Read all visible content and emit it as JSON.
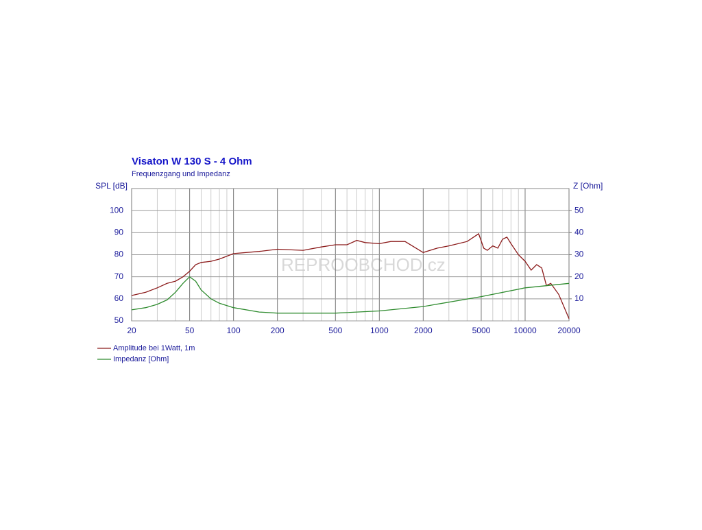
{
  "chart_data": {
    "type": "line",
    "title": "Visaton W 130 S - 4 Ohm",
    "subtitle": "Frequenzgang und Impedanz",
    "y_label": "SPL [dB]",
    "y2_label": "Z [Ohm]",
    "watermark": "REPROOBCHOD.cz",
    "log_x": true,
    "grid": true,
    "xlim": [
      20,
      20000
    ],
    "xticks": [
      20,
      50,
      100,
      200,
      500,
      1000,
      2000,
      5000,
      10000,
      20000
    ],
    "x_minor_ticks": [
      30,
      40,
      60,
      70,
      80,
      90,
      300,
      400,
      600,
      700,
      800,
      900,
      3000,
      4000,
      6000,
      7000,
      8000,
      9000
    ],
    "ylim": [
      50,
      110
    ],
    "yticks": [
      50,
      60,
      70,
      80,
      90,
      100
    ],
    "y2lim": [
      0,
      60
    ],
    "y2ticks": [
      10,
      20,
      30,
      40,
      50
    ],
    "legend": "bottom-left",
    "series": [
      {
        "name": "Amplitude bei 1Watt, 1m",
        "color": "#8b1a1a",
        "x": [
          20,
          25,
          30,
          35,
          40,
          45,
          50,
          55,
          60,
          70,
          80,
          100,
          150,
          200,
          300,
          400,
          500,
          600,
          700,
          800,
          1000,
          1200,
          1500,
          2000,
          2500,
          3000,
          4000,
          4800,
          5200,
          5500,
          6000,
          6500,
          7000,
          7500,
          8000,
          9000,
          10000,
          11000,
          12000,
          13000,
          14000,
          15000,
          17000,
          20000
        ],
        "values": [
          61.5,
          63,
          65,
          67,
          68,
          70,
          72.5,
          75.5,
          76.5,
          77,
          78,
          80.5,
          81.5,
          82.5,
          82,
          83.5,
          84.5,
          84.5,
          86.5,
          85.5,
          85,
          86,
          86,
          81,
          83,
          84,
          86,
          89.5,
          83,
          82,
          84,
          83,
          87,
          88,
          85,
          80,
          77,
          73,
          75.5,
          74,
          66,
          67,
          62,
          51
        ]
      },
      {
        "name": "Impedanz [Ohm]",
        "color": "#2e8b2e",
        "axis": "y2",
        "x": [
          20,
          25,
          30,
          35,
          40,
          45,
          50,
          55,
          60,
          70,
          80,
          100,
          150,
          200,
          500,
          1000,
          2000,
          5000,
          10000,
          20000
        ],
        "values": [
          5,
          6,
          7.5,
          9.5,
          13,
          17,
          20,
          18,
          14,
          10,
          8,
          6,
          4,
          3.5,
          3.5,
          4.5,
          6.5,
          11,
          15,
          17
        ]
      }
    ]
  }
}
